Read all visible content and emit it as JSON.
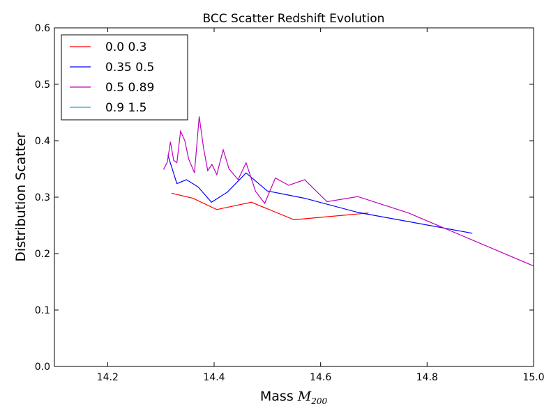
{
  "chart_data": {
    "type": "line",
    "title": "BCC Scatter Redshift Evolution",
    "xlabel": "Mass",
    "xlabel_math": "M",
    "xlabel_sub": "200",
    "ylabel": "Distribution Scatter",
    "xlim": [
      14.1,
      15.0
    ],
    "ylim": [
      0.0,
      0.6
    ],
    "xticks": [
      14.2,
      14.4,
      14.6,
      14.8,
      15.0
    ],
    "xtick_labels": [
      "14.2",
      "14.4",
      "14.6",
      "14.8",
      "15.0"
    ],
    "yticks": [
      0.0,
      0.1,
      0.2,
      0.3,
      0.4,
      0.5,
      0.6
    ],
    "ytick_labels": [
      "0.0",
      "0.1",
      "0.2",
      "0.3",
      "0.4",
      "0.5",
      "0.6"
    ],
    "grid": false,
    "legend_position": "top-left",
    "series": [
      {
        "name": "0.0 0.3",
        "color": "#ff0000",
        "x": [
          14.32,
          14.36,
          14.405,
          14.47,
          14.55,
          14.69
        ],
        "y": [
          0.307,
          0.298,
          0.278,
          0.291,
          0.26,
          0.272
        ]
      },
      {
        "name": "0.35 0.5",
        "color": "#0000ff",
        "x": [
          14.313,
          14.33,
          14.348,
          14.37,
          14.395,
          14.425,
          14.46,
          14.5,
          14.57,
          14.67,
          14.885
        ],
        "y": [
          0.375,
          0.324,
          0.331,
          0.318,
          0.291,
          0.309,
          0.343,
          0.311,
          0.298,
          0.273,
          0.236
        ]
      },
      {
        "name": "0.5 0.89",
        "color": "#bf00bf",
        "x": [
          14.305,
          14.312,
          14.318,
          14.324,
          14.33,
          14.337,
          14.345,
          14.352,
          14.363,
          14.372,
          14.38,
          14.388,
          14.396,
          14.405,
          14.417,
          14.428,
          14.445,
          14.46,
          14.478,
          14.495,
          14.515,
          14.54,
          14.57,
          14.612,
          14.67,
          14.765,
          15.0
        ],
        "y": [
          0.349,
          0.362,
          0.398,
          0.365,
          0.361,
          0.417,
          0.4,
          0.368,
          0.343,
          0.443,
          0.388,
          0.347,
          0.358,
          0.34,
          0.384,
          0.35,
          0.331,
          0.361,
          0.31,
          0.289,
          0.334,
          0.321,
          0.331,
          0.292,
          0.301,
          0.272,
          0.178
        ]
      },
      {
        "name": "0.9 1.5",
        "color": "#1f9fdf",
        "x": [],
        "y": []
      }
    ]
  }
}
